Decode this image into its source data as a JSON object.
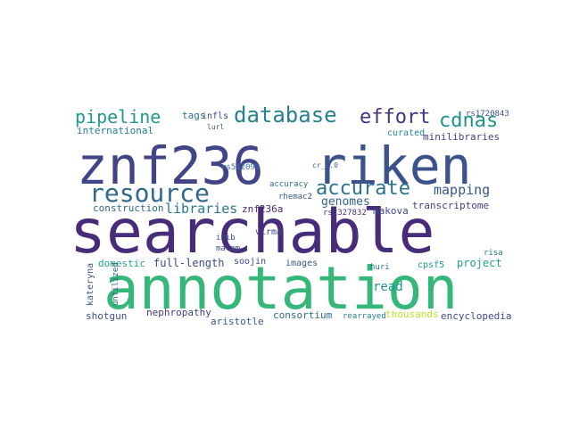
{
  "words": [
    {
      "text": "searchable",
      "color": "#472c7a"
    },
    {
      "text": "annotation",
      "color": "#35b779"
    },
    {
      "text": "znf236",
      "color": "#414487"
    },
    {
      "text": "riken",
      "color": "#3b528b"
    },
    {
      "text": "resource",
      "color": "#31688e"
    },
    {
      "text": "database",
      "color": "#26828e"
    },
    {
      "text": "accurate",
      "color": "#2c728e"
    },
    {
      "text": "pipeline",
      "color": "#1f9a8a"
    },
    {
      "text": "effort",
      "color": "#46327e"
    },
    {
      "text": "cdnas",
      "color": "#21918c"
    },
    {
      "text": "mapping",
      "color": "#38598c"
    },
    {
      "text": "libraries",
      "color": "#2a788e"
    },
    {
      "text": "genomes",
      "color": "#33638d"
    },
    {
      "text": "international",
      "color": "#287d8e"
    },
    {
      "text": "construction",
      "color": "#31688e"
    },
    {
      "text": "curated",
      "color": "#24868e"
    },
    {
      "text": "minilibraries",
      "color": "#433e85"
    },
    {
      "text": "tags",
      "color": "#2d708e"
    },
    {
      "text": "infls",
      "color": "#3e4a89"
    },
    {
      "text": "lurl",
      "color": "#365c8d"
    },
    {
      "text": "rs1720843",
      "color": "#3b528b"
    },
    {
      "text": "rs512099",
      "color": "#3e74b0"
    },
    {
      "text": "accuracy",
      "color": "#2f6c8e"
    },
    {
      "text": "cr_1.0",
      "color": "#4a5e8c"
    },
    {
      "text": "znf236a",
      "color": "#482878"
    },
    {
      "text": "rhemac2",
      "color": "#3a548c"
    },
    {
      "text": "rs2327832",
      "color": "#46337f"
    },
    {
      "text": "makova",
      "color": "#3f4889"
    },
    {
      "text": "transcriptome",
      "color": "#404387"
    },
    {
      "text": "domestic",
      "color": "#22a884"
    },
    {
      "text": "full-length",
      "color": "#3d4d8a"
    },
    {
      "text": "inib",
      "color": "#3a538b"
    },
    {
      "text": "virma",
      "color": "#404688"
    },
    {
      "text": "macam",
      "color": "#3b528b"
    },
    {
      "text": "images",
      "color": "#39568c"
    },
    {
      "text": "soojin",
      "color": "#3e4989"
    },
    {
      "text": "huri",
      "color": "#29798e"
    },
    {
      "text": "cpsf5",
      "color": "#1e9b8a"
    },
    {
      "text": "project",
      "color": "#1fa088"
    },
    {
      "text": "risa",
      "color": "#2a778e"
    },
    {
      "text": "kateryna",
      "color": "#3a548c"
    },
    {
      "text": "untilized",
      "color": "#355f8d"
    },
    {
      "text": "read",
      "color": "#1f968b"
    },
    {
      "text": "shotgun",
      "color": "#3d4e8a"
    },
    {
      "text": "nephropathy",
      "color": "#433d84"
    },
    {
      "text": "aristotle",
      "color": "#39558c"
    },
    {
      "text": "consortium",
      "color": "#2f6b8e"
    },
    {
      "text": "rearrayed",
      "color": "#26818e"
    },
    {
      "text": "thousands",
      "color": "#bddf26"
    },
    {
      "text": "encyclopedia",
      "color": "#3e4c8a"
    }
  ]
}
